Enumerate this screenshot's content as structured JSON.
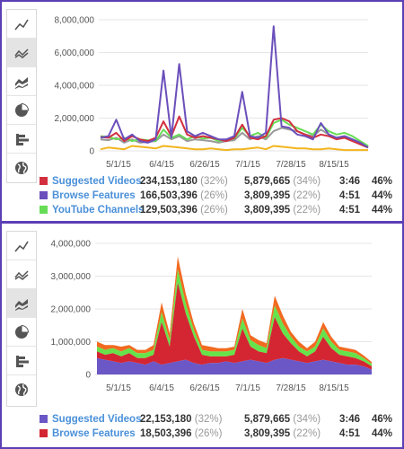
{
  "colors": {
    "frame": "#5b3fb5",
    "suggested_top": "#d32f3f",
    "browse_top": "#6b4fbb",
    "channels_top": "#66dd55",
    "other_top": "#f2b51e",
    "extra_top": "#999999",
    "suggested_bottom": "#6b57c5",
    "browse_bottom": "#d42632",
    "channels_bottom": "#66e34a",
    "orange_bottom": "#f26a20"
  },
  "toolbar_top": {
    "items": [
      {
        "icon": "line-chart-icon",
        "active": false
      },
      {
        "icon": "multi-line-chart-icon",
        "active": true
      },
      {
        "icon": "area-chart-icon",
        "active": false
      },
      {
        "icon": "pie-chart-icon",
        "active": false
      },
      {
        "icon": "bar-chart-icon",
        "active": false
      },
      {
        "icon": "globe-icon",
        "active": false
      }
    ]
  },
  "toolbar_bottom": {
    "items": [
      {
        "icon": "line-chart-icon",
        "active": false
      },
      {
        "icon": "multi-line-chart-icon",
        "active": false
      },
      {
        "icon": "area-chart-icon",
        "active": true
      },
      {
        "icon": "pie-chart-icon",
        "active": false
      },
      {
        "icon": "bar-chart-icon",
        "active": false
      },
      {
        "icon": "globe-icon",
        "active": false
      }
    ]
  },
  "legend_top": [
    {
      "name": "Suggested Videos",
      "views": "234,153,180",
      "views_pct": "(32%)",
      "minutes": "5,879,665",
      "minutes_pct": "(34%)",
      "duration": "3:46",
      "share": "46%"
    },
    {
      "name": "Browse Features",
      "views": "166,503,396",
      "views_pct": "(26%)",
      "minutes": "3,809,395",
      "minutes_pct": "(22%)",
      "duration": "4:51",
      "share": "44%"
    },
    {
      "name": "YouTube Channels",
      "views": "129,503,396",
      "views_pct": "(26%)",
      "minutes": "3,809,395",
      "minutes_pct": "(22%)",
      "duration": "4:51",
      "share": "44%"
    }
  ],
  "legend_bottom": [
    {
      "name": "Suggested Videos",
      "views": "22,153,180",
      "views_pct": "(32%)",
      "minutes": "5,879,665",
      "minutes_pct": "(34%)",
      "duration": "3:46",
      "share": "46%"
    },
    {
      "name": "Browse Features",
      "views": "18,503,396",
      "views_pct": "(26%)",
      "minutes": "3,809,395",
      "minutes_pct": "(22%)",
      "duration": "4:51",
      "share": "44%"
    }
  ],
  "chart_data": [
    {
      "type": "line",
      "x_tick_labels": [
        "5/1/15",
        "6/4/15",
        "6/26/15",
        "7/1/15",
        "7/28/15",
        "8/15/15"
      ],
      "y_tick_labels": [
        "0",
        "2,000,000",
        "4,000,000",
        "6,000,000",
        "8,000,000"
      ],
      "ylim": [
        0,
        8000000
      ],
      "grid": true,
      "series": [
        {
          "name": "Browse Features",
          "values": [
            800000,
            900000,
            1900000,
            700000,
            1000000,
            600000,
            500000,
            700000,
            4900000,
            800000,
            5300000,
            1200000,
            900000,
            1100000,
            900000,
            700000,
            700000,
            900000,
            3600000,
            900000,
            800000,
            1100000,
            7600000,
            1500000,
            1400000,
            1000000,
            900000,
            700000,
            1700000,
            1000000,
            800000,
            900000,
            700000,
            500000,
            200000
          ]
        },
        {
          "name": "Suggested Videos",
          "values": [
            850000,
            800000,
            1100000,
            600000,
            900000,
            700000,
            600000,
            800000,
            1800000,
            900000,
            2100000,
            1000000,
            800000,
            900000,
            800000,
            700000,
            600000,
            800000,
            1600000,
            800000,
            700000,
            900000,
            1900000,
            2000000,
            1800000,
            1200000,
            1000000,
            800000,
            1000000,
            900000,
            700000,
            800000,
            600000,
            400000,
            200000
          ]
        },
        {
          "name": "YouTube Channels",
          "values": [
            900000,
            850000,
            700000,
            800000,
            600000,
            700000,
            650000,
            600000,
            1300000,
            800000,
            1000000,
            700000,
            900000,
            750000,
            800000,
            600000,
            700000,
            750000,
            1400000,
            900000,
            1100000,
            800000,
            1700000,
            1900000,
            1600000,
            1400000,
            1200000,
            1000000,
            1600000,
            1200000,
            1000000,
            1100000,
            900000,
            600000,
            300000
          ]
        },
        {
          "values": [
            700000,
            650000,
            800000,
            500000,
            700000,
            500000,
            550000,
            600000,
            1000000,
            700000,
            900000,
            600000,
            700000,
            650000,
            600000,
            500000,
            600000,
            650000,
            1100000,
            700000,
            900000,
            700000,
            1200000,
            1400000,
            1300000,
            1200000,
            1000000,
            900000,
            1300000,
            1000000,
            800000,
            900000,
            700000,
            500000,
            250000
          ]
        },
        {
          "values": [
            100000,
            200000,
            150000,
            100000,
            300000,
            250000,
            200000,
            150000,
            300000,
            250000,
            200000,
            150000,
            100000,
            100000,
            150000,
            100000,
            50000,
            100000,
            100000,
            150000,
            200000,
            100000,
            300000,
            250000,
            200000,
            150000,
            150000,
            100000,
            100000,
            150000,
            100000,
            50000,
            50000,
            50000,
            50000
          ]
        }
      ]
    },
    {
      "type": "area",
      "x_tick_labels": [
        "5/1/15",
        "6/4/15",
        "6/26/15",
        "7/1/15",
        "7/28/15",
        "8/15/15"
      ],
      "y_tick_labels": [
        "0",
        "1,000,000",
        "2,000,000",
        "3,000,000",
        "4,000,000"
      ],
      "ylim": [
        0,
        4000000
      ],
      "grid": true,
      "stacked": true,
      "series": [
        {
          "name": "Suggested Videos",
          "values": [
            500000,
            450000,
            400000,
            350000,
            400000,
            350000,
            300000,
            400000,
            300000,
            350000,
            400000,
            450000,
            350000,
            300000,
            350000,
            350000,
            400000,
            350000,
            400000,
            450000,
            400000,
            350000,
            450000,
            500000,
            450000,
            400000,
            350000,
            400000,
            450000,
            400000,
            350000,
            300000,
            300000,
            250000,
            150000
          ]
        },
        {
          "name": "Browse Features",
          "values": [
            200000,
            150000,
            250000,
            200000,
            250000,
            150000,
            200000,
            200000,
            1300000,
            500000,
            2400000,
            1400000,
            800000,
            300000,
            200000,
            200000,
            150000,
            250000,
            1000000,
            400000,
            300000,
            300000,
            1300000,
            750000,
            500000,
            300000,
            200000,
            300000,
            700000,
            400000,
            250000,
            250000,
            200000,
            150000,
            100000
          ]
        },
        {
          "values": [
            150000,
            150000,
            150000,
            150000,
            150000,
            150000,
            150000,
            150000,
            300000,
            200000,
            400000,
            300000,
            200000,
            150000,
            150000,
            150000,
            150000,
            150000,
            300000,
            200000,
            200000,
            150000,
            350000,
            300000,
            200000,
            150000,
            150000,
            150000,
            250000,
            200000,
            150000,
            150000,
            150000,
            100000,
            80000
          ]
        },
        {
          "values": [
            150000,
            150000,
            100000,
            150000,
            100000,
            100000,
            100000,
            150000,
            300000,
            200000,
            400000,
            300000,
            200000,
            150000,
            150000,
            100000,
            100000,
            100000,
            300000,
            150000,
            150000,
            150000,
            300000,
            250000,
            150000,
            150000,
            100000,
            150000,
            200000,
            150000,
            100000,
            100000,
            100000,
            80000,
            50000
          ]
        }
      ]
    }
  ]
}
